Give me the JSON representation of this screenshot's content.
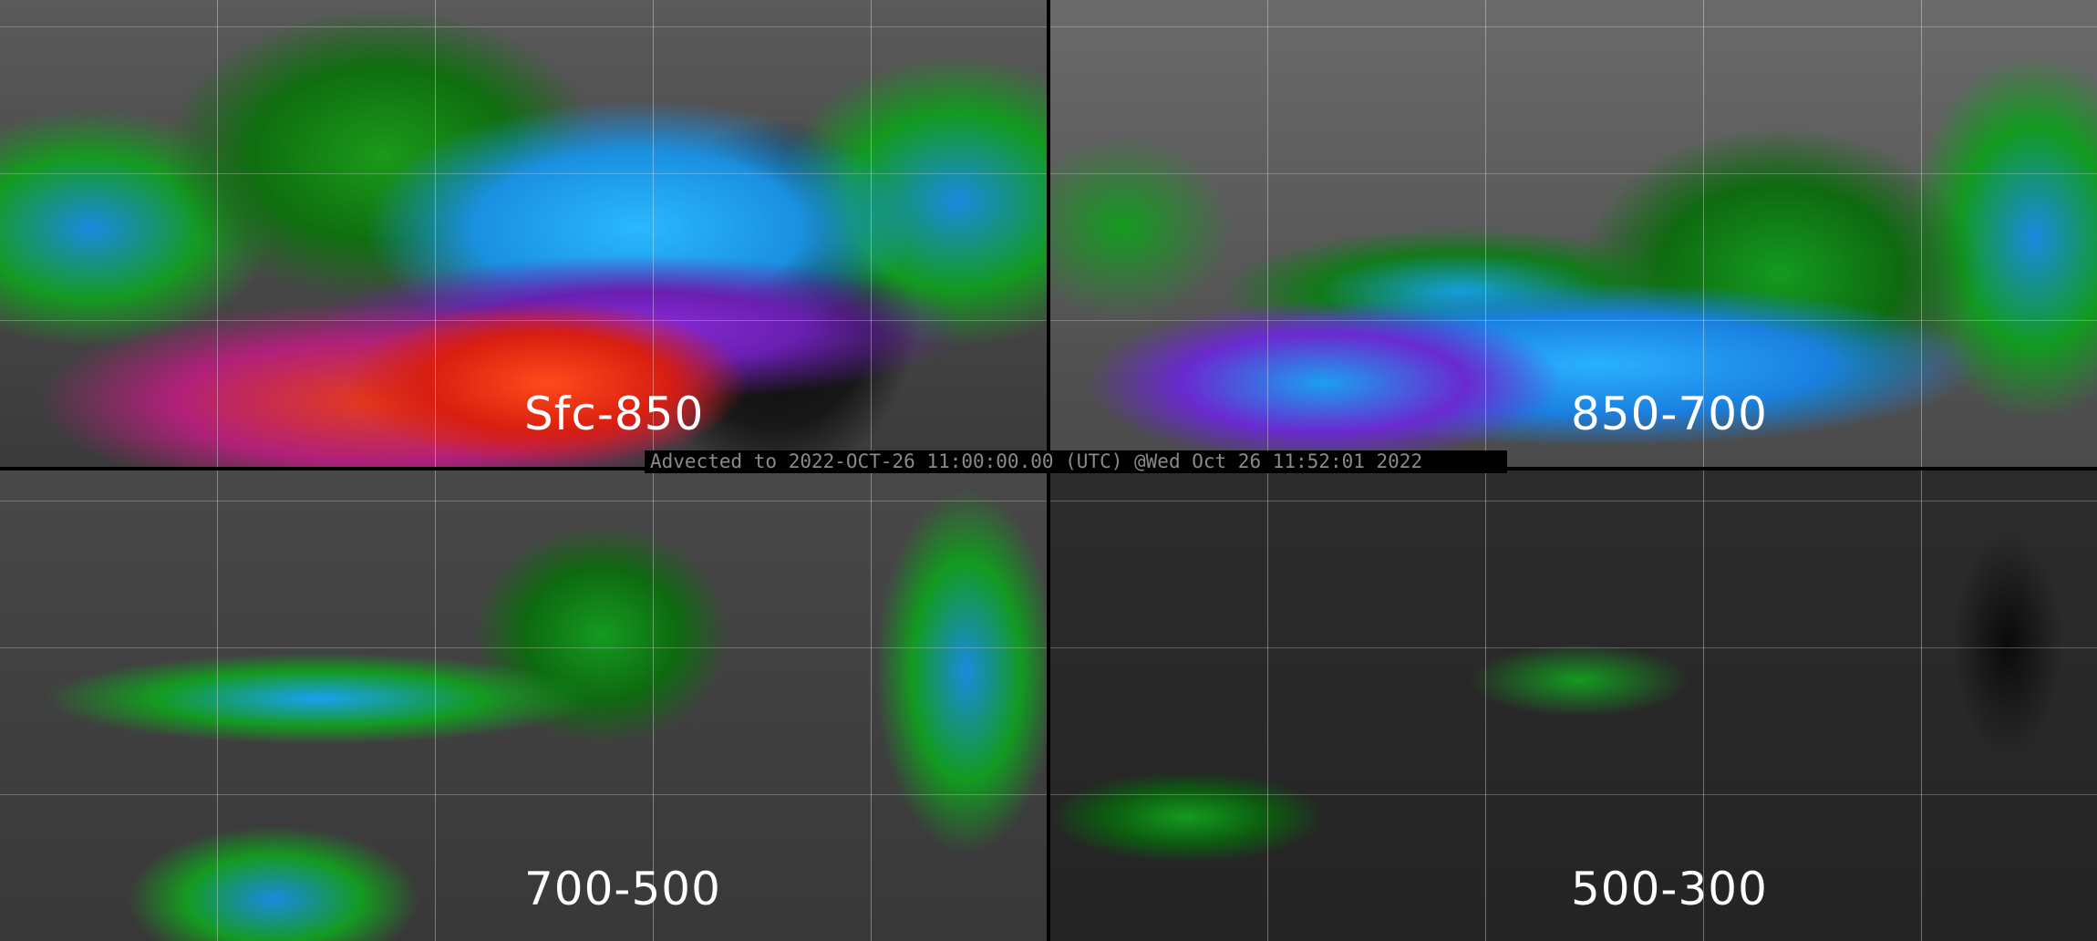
{
  "panels": [
    {
      "label": "Sfc-850"
    },
    {
      "label": "850-700"
    },
    {
      "label": "700-500"
    },
    {
      "label": "500-300"
    }
  ],
  "banner": {
    "text": "Advected to 2022-OCT-26 11:00:00.00 (UTC) @Wed Oct 26 11:52:01 2022"
  },
  "colors": {
    "background": "#000000",
    "banner_text": "#8a8a8a",
    "label": "#ffffff"
  }
}
